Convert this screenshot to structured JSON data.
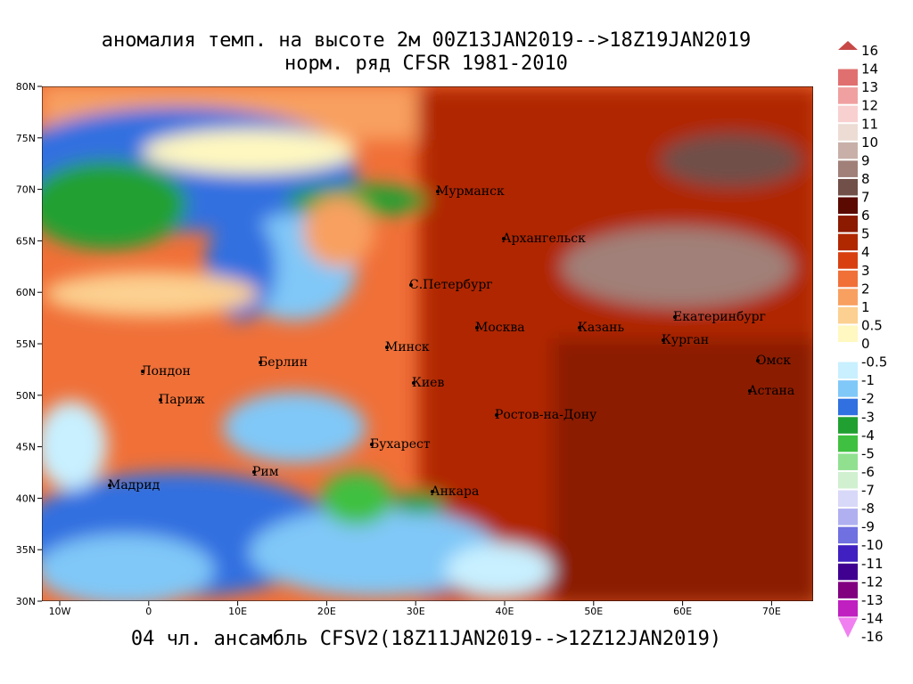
{
  "title": {
    "line1": "аномалия темп. на высоте 2м 00Z13JAN2019-->18Z19JAN2019",
    "line2": "норм. ряд CFSR 1981-2010"
  },
  "footer": "04 чл. ансамбль CFSV2(18Z11JAN2019-->12Z12JAN2019)",
  "axes": {
    "lat_labels": [
      "80N",
      "75N",
      "70N",
      "65N",
      "60N",
      "55N",
      "50N",
      "45N",
      "40N",
      "35N",
      "30N"
    ],
    "lon_labels": [
      "10W",
      "0",
      "10E",
      "20E",
      "30E",
      "40E",
      "50E",
      "60E",
      "70E"
    ]
  },
  "cities": [
    "Мурманск",
    "Архангельск",
    "С.Петербург",
    "Москва",
    "Казань",
    "Екатеринбург",
    "Курган",
    "Омск",
    "Астана",
    "Минск",
    "Киев",
    "Берлин",
    "Лондон",
    "Париж",
    "Ростов-на-Дону",
    "Бухарест",
    "Рим",
    "Мадрид",
    "Анкара"
  ],
  "colorbar": {
    "labels": [
      "16",
      "14",
      "13",
      "12",
      "11",
      "10",
      "9",
      "8",
      "7",
      "6",
      "5",
      "4",
      "3",
      "2",
      "1",
      "0.5",
      "0",
      "-0.5",
      "-1",
      "-2",
      "-3",
      "-4",
      "-5",
      "-6",
      "-7",
      "-8",
      "-9",
      "-10",
      "-11",
      "-12",
      "-13",
      "-14",
      "-16"
    ],
    "colors": [
      "#c84848",
      "#e07070",
      "#f0a0a0",
      "#f8d0d0",
      "#ecdcd4",
      "#c8b0a8",
      "#a08078",
      "#705048",
      "#5a0a00",
      "#8b1a00",
      "#b02800",
      "#d84010",
      "#f07038",
      "#f8a060",
      "#fcd090",
      "#fff8c0",
      "#ffffff",
      "#c8f0ff",
      "#80c8f8",
      "#3070e0",
      "#20a030",
      "#40c040",
      "#90e090",
      "#d0f0d0",
      "#d8d8f8",
      "#b0b0f0",
      "#7070e0",
      "#4020c0",
      "#400090",
      "#800080",
      "#c020c0",
      "#f080f0"
    ]
  }
}
